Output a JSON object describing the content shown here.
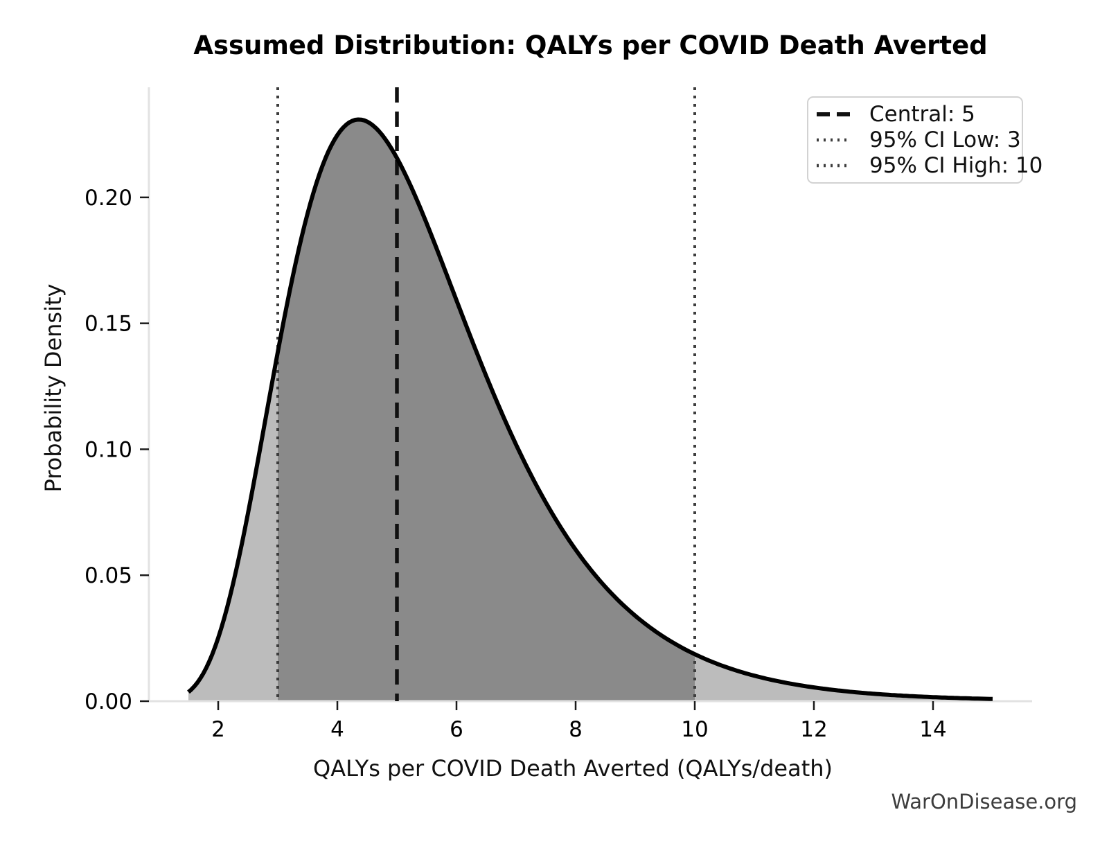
{
  "watermark": "WarOnDisease.org",
  "chart_data": {
    "type": "area",
    "title": "Assumed Distribution: QALYs per COVID Death Averted",
    "xlabel": "QALYs per COVID Death Averted (QALYs/death)",
    "ylabel": "Probability Density",
    "x_ticks": [
      2,
      4,
      6,
      8,
      10,
      12,
      14
    ],
    "y_ticks": [
      {
        "value": 0.0,
        "label": "0.00"
      },
      {
        "value": 0.05,
        "label": "0.05"
      },
      {
        "value": 0.1,
        "label": "0.10"
      },
      {
        "value": 0.15,
        "label": "0.15"
      },
      {
        "value": 0.2,
        "label": "0.20"
      }
    ],
    "xlim": [
      0.837,
      15.663
    ],
    "ylim": [
      0,
      0.2437
    ],
    "x_range_plotted": [
      1.5,
      15
    ],
    "grid": false,
    "distribution": {
      "family": "lognormal",
      "median": 5,
      "sigma": 0.37
    },
    "markers": {
      "central": 5,
      "ci_low": 3,
      "ci_high": 10
    },
    "shading": {
      "ci_band": [
        3,
        10
      ]
    },
    "curve_anchors": {
      "x": [
        1.5,
        1.75,
        2,
        2.25,
        2.5,
        2.75,
        3,
        3.25,
        3.5,
        3.75,
        4,
        4.25,
        4.35,
        4.5,
        4.75,
        5,
        5.25,
        5.5,
        6,
        6.5,
        7,
        7.5,
        8,
        8.5,
        9,
        9.5,
        10,
        10.5,
        11,
        11.5,
        12,
        12.5,
        13,
        13.5,
        14,
        14.5,
        15
      ],
      "y": [
        0.0036,
        0.011,
        0.0251,
        0.0467,
        0.0746,
        0.1063,
        0.1386,
        0.1684,
        0.1936,
        0.2125,
        0.2247,
        0.2303,
        0.2309,
        0.2301,
        0.2248,
        0.2157,
        0.2036,
        0.1896,
        0.1592,
        0.129,
        0.1019,
        0.0789,
        0.0602,
        0.0454,
        0.0339,
        0.0252,
        0.0187,
        0.0137,
        0.0101,
        0.0074,
        0.0055,
        0.004,
        0.003,
        0.0022,
        0.0016,
        0.0012,
        0.0009
      ]
    },
    "legend": {
      "position": "upper right",
      "items": [
        {
          "label": "Central: 5",
          "line_style": "dashed",
          "color": "#111111"
        },
        {
          "label": "95% CI Low: 3",
          "line_style": "dotted",
          "color": "#3d3d3d"
        },
        {
          "label": "95% CI High: 10",
          "line_style": "dotted",
          "color": "#3d3d3d"
        }
      ]
    },
    "colors": {
      "curve": "#000000",
      "fill_ci": "#8a8a8a",
      "fill_tail": "#bcbcbc",
      "central_line": "#111111",
      "ci_line": "#3d3d3d",
      "spine": "#e2e2e2",
      "tick": "#1a1a1a",
      "tick_label": "#000000",
      "watermark": "#3d3d3d"
    }
  }
}
